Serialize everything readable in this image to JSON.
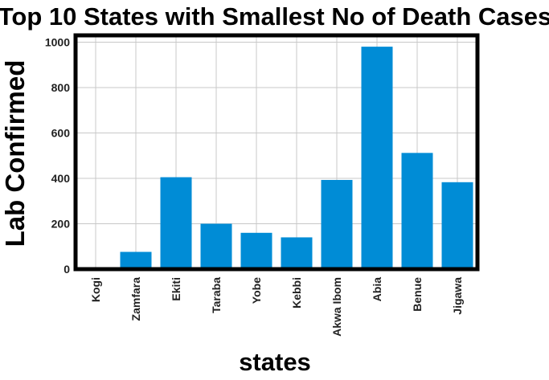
{
  "chart_data": {
    "type": "bar",
    "title": "Top 10 States with Smallest No of Death Cases",
    "xlabel": "states",
    "ylabel": "Lab Confirmed",
    "categories": [
      "Kogi",
      "Zamfara",
      "Ekiti",
      "Taraba",
      "Yobe",
      "Kebbi",
      "Akwa Ibom",
      "Abia",
      "Benue",
      "Jigawa"
    ],
    "values": [
      5,
      76,
      405,
      200,
      160,
      140,
      393,
      980,
      512,
      383
    ],
    "ylim": [
      0,
      1030
    ],
    "yticks": [
      0,
      200,
      400,
      600,
      800,
      1000
    ],
    "grid": true,
    "bar_color": "#008cd6"
  }
}
